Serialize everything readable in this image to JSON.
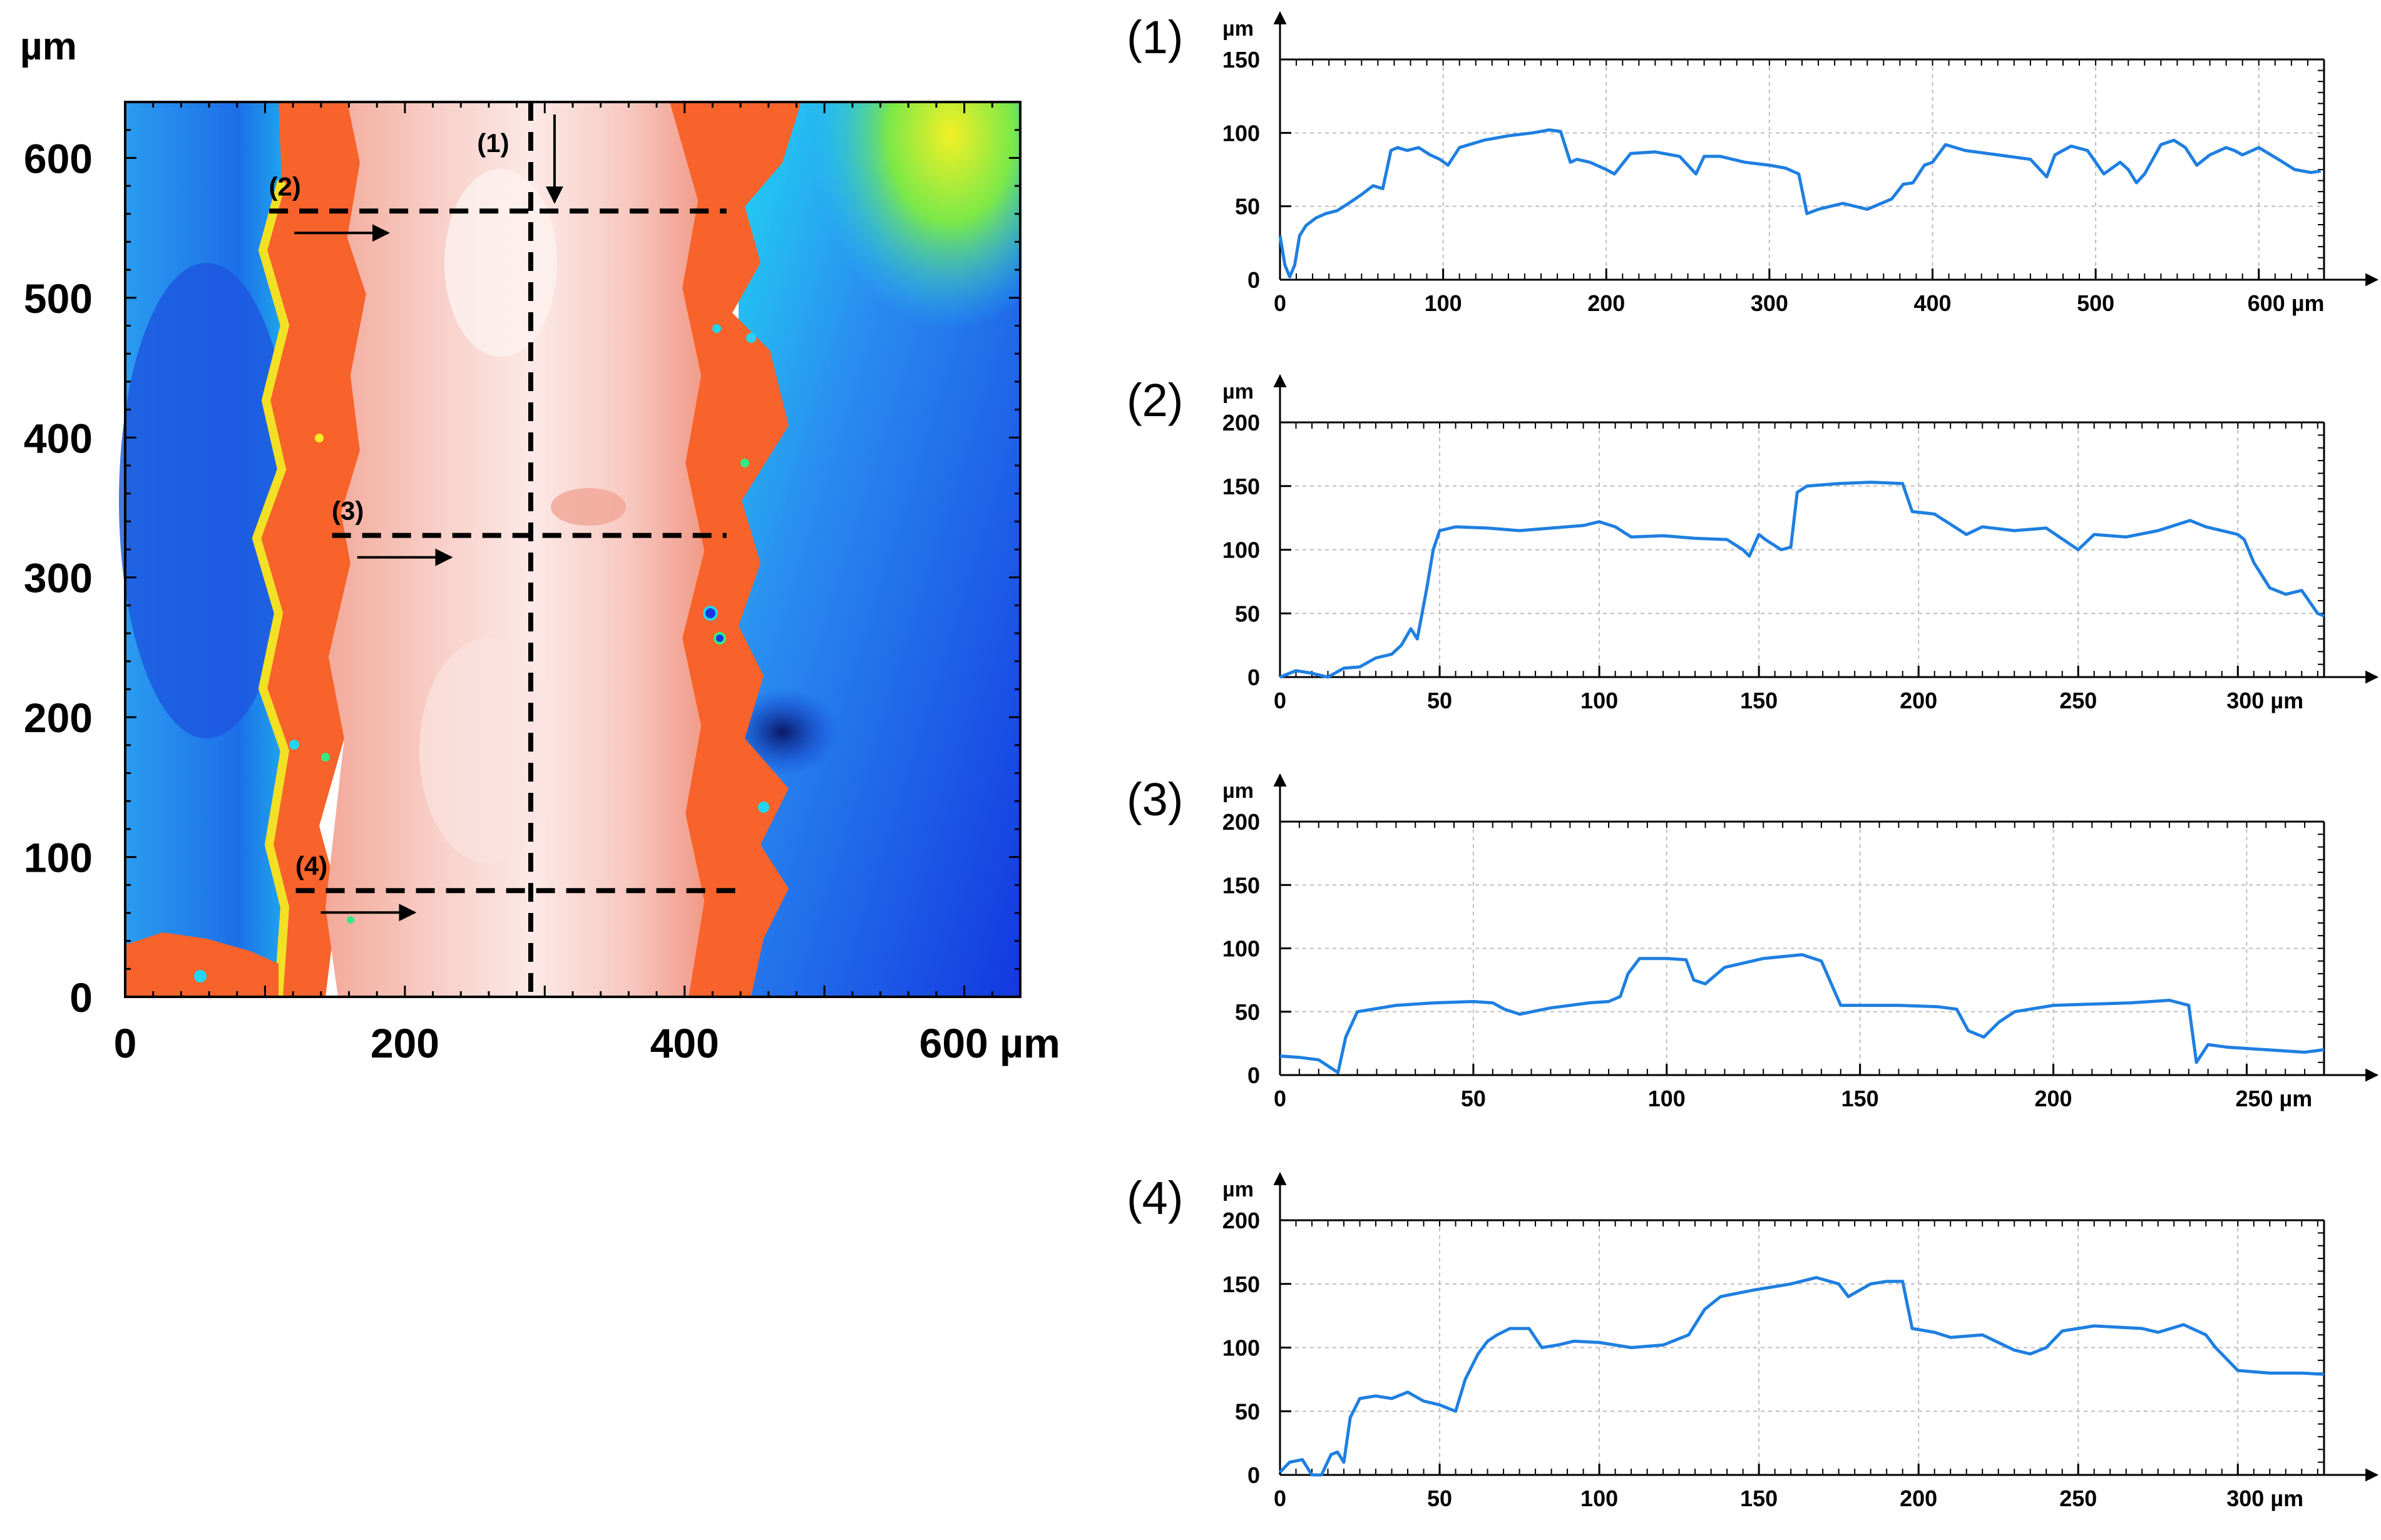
{
  "chart_data": [
    {
      "id": "map",
      "type": "heatmap",
      "title": "",
      "ylabel_unit": "µm",
      "xlabel_unit": "µm",
      "x_ticks": [
        "0",
        "200",
        "400",
        "600 µm"
      ],
      "x_tick_values": [
        0,
        200,
        400,
        600
      ],
      "y_ticks": [
        "0",
        "100",
        "200",
        "300",
        "400",
        "500",
        "600"
      ],
      "y_tick_values": [
        0,
        100,
        200,
        300,
        400,
        500,
        600
      ],
      "xlim": [
        0,
        640
      ],
      "ylim": [
        0,
        640
      ],
      "colorscale": [
        "#0a2470",
        "#1338e0",
        "#2a8cf0",
        "#21d6f2",
        "#34e886",
        "#b0ef2a",
        "#f2f025",
        "#fb6a2b",
        "#f6b7ae",
        "#fbe8e5"
      ],
      "profile_lines": [
        {
          "label": "(1)",
          "orientation": "vertical",
          "x": 290,
          "y_from": 640,
          "y_to": 0,
          "arrow": "down"
        },
        {
          "label": "(2)",
          "orientation": "horizontal",
          "y": 562,
          "x_from": 103,
          "x_to": 430,
          "arrow": "right"
        },
        {
          "label": "(3)",
          "orientation": "horizontal",
          "y": 330,
          "x_from": 148,
          "x_to": 430,
          "arrow": "right"
        },
        {
          "label": "(4)",
          "orientation": "horizontal",
          "y": 76,
          "x_from": 122,
          "x_to": 440,
          "arrow": "right"
        }
      ]
    },
    {
      "id": "profile-1",
      "type": "line",
      "label": "(1)",
      "ylabel": "µm",
      "xlim": [
        0,
        640
      ],
      "ylim": [
        0,
        150
      ],
      "x_tick_values": [
        0,
        100,
        200,
        300,
        400,
        500,
        600
      ],
      "x_tick_labels": [
        "0",
        "100",
        "200",
        "300",
        "400",
        "500",
        "600 µm"
      ],
      "y_tick_values": [
        0,
        50,
        100,
        150
      ],
      "y_tick_labels": [
        "0",
        "50",
        "100",
        "150"
      ],
      "color": "#1e7fe0",
      "x": [
        0,
        3,
        6,
        9,
        12,
        16,
        22,
        28,
        35,
        42,
        50,
        57,
        63,
        68,
        72,
        78,
        85,
        92,
        98,
        103,
        110,
        125,
        140,
        155,
        165,
        172,
        178,
        182,
        190,
        200,
        205,
        215,
        230,
        245,
        255,
        260,
        270,
        285,
        300,
        310,
        318,
        323,
        330,
        345,
        360,
        375,
        382,
        388,
        395,
        400,
        408,
        420,
        440,
        460,
        470,
        475,
        485,
        495,
        505,
        515,
        520,
        525,
        530,
        540,
        548,
        555,
        562,
        570,
        580,
        585,
        590,
        600,
        612,
        622,
        632,
        638
      ],
      "y": [
        30,
        10,
        2,
        10,
        30,
        37,
        42,
        45,
        47,
        52,
        58,
        64,
        62,
        88,
        90,
        88,
        90,
        85,
        82,
        78,
        90,
        95,
        98,
        100,
        102,
        101,
        80,
        82,
        80,
        75,
        72,
        86,
        87,
        84,
        72,
        84,
        84,
        80,
        78,
        76,
        72,
        45,
        48,
        52,
        48,
        55,
        65,
        66,
        78,
        80,
        92,
        88,
        85,
        82,
        70,
        85,
        91,
        88,
        72,
        80,
        75,
        66,
        72,
        92,
        95,
        90,
        78,
        85,
        90,
        88,
        85,
        90,
        82,
        75,
        73,
        74
      ]
    },
    {
      "id": "profile-2",
      "type": "line",
      "label": "(2)",
      "ylabel": "µm",
      "xlim": [
        0,
        327
      ],
      "ylim": [
        0,
        200
      ],
      "x_tick_values": [
        0,
        50,
        100,
        150,
        200,
        250,
        300
      ],
      "x_tick_labels": [
        "0",
        "50",
        "100",
        "150",
        "200",
        "250",
        "300 µm"
      ],
      "y_tick_values": [
        0,
        50,
        100,
        150,
        200
      ],
      "y_tick_labels": [
        "0",
        "50",
        "100",
        "150",
        "200"
      ],
      "color": "#1e7fe0",
      "x": [
        0,
        5,
        10,
        15,
        20,
        25,
        30,
        35,
        38,
        41,
        43,
        46,
        48,
        50,
        55,
        65,
        75,
        85,
        95,
        100,
        105,
        110,
        120,
        130,
        140,
        145,
        147,
        150,
        152,
        157,
        160,
        162,
        165,
        175,
        185,
        195,
        198,
        205,
        210,
        215,
        220,
        230,
        240,
        250,
        255,
        265,
        275,
        285,
        290,
        300,
        302,
        305,
        310,
        315,
        320,
        325,
        327
      ],
      "y": [
        0,
        5,
        3,
        0,
        7,
        8,
        15,
        18,
        25,
        38,
        30,
        70,
        100,
        115,
        118,
        117,
        115,
        117,
        119,
        122,
        118,
        110,
        111,
        109,
        108,
        100,
        95,
        112,
        108,
        100,
        102,
        145,
        150,
        152,
        153,
        152,
        130,
        128,
        120,
        112,
        118,
        115,
        117,
        100,
        112,
        110,
        115,
        123,
        118,
        112,
        108,
        90,
        70,
        65,
        68,
        50,
        48
      ]
    },
    {
      "id": "profile-3",
      "type": "line",
      "label": "(3)",
      "ylabel": "µm",
      "xlim": [
        0,
        270
      ],
      "ylim": [
        0,
        200
      ],
      "x_tick_values": [
        0,
        50,
        100,
        150,
        200,
        250
      ],
      "x_tick_labels": [
        "0",
        "50",
        "100",
        "150",
        "200",
        "250 µm"
      ],
      "y_tick_values": [
        0,
        50,
        100,
        150,
        200
      ],
      "y_tick_labels": [
        "0",
        "50",
        "100",
        "150",
        "200"
      ],
      "color": "#1e7fe0",
      "x": [
        0,
        5,
        10,
        15,
        17,
        20,
        30,
        40,
        50,
        55,
        58,
        62,
        70,
        80,
        85,
        88,
        90,
        93,
        100,
        105,
        107,
        110,
        115,
        125,
        135,
        140,
        145,
        150,
        160,
        170,
        175,
        178,
        182,
        186,
        190,
        200,
        210,
        220,
        230,
        235,
        237,
        240,
        245,
        255,
        265,
        270
      ],
      "y": [
        15,
        14,
        12,
        2,
        30,
        50,
        55,
        57,
        58,
        57,
        52,
        48,
        53,
        57,
        58,
        62,
        80,
        92,
        92,
        91,
        75,
        72,
        85,
        92,
        95,
        90,
        55,
        55,
        55,
        54,
        52,
        35,
        30,
        42,
        50,
        55,
        56,
        57,
        59,
        55,
        10,
        24,
        22,
        20,
        18,
        20
      ]
    },
    {
      "id": "profile-4",
      "type": "line",
      "label": "(4)",
      "ylabel": "µm",
      "xlim": [
        0,
        327
      ],
      "ylim": [
        0,
        200
      ],
      "x_tick_values": [
        0,
        50,
        100,
        150,
        200,
        250,
        300
      ],
      "x_tick_labels": [
        "0",
        "50",
        "100",
        "150",
        "200",
        "250",
        "300 µm"
      ],
      "y_tick_values": [
        0,
        50,
        100,
        150,
        200
      ],
      "y_tick_labels": [
        "0",
        "50",
        "100",
        "150",
        "200"
      ],
      "color": "#1e7fe0",
      "x": [
        0,
        3,
        7,
        10,
        13,
        16,
        18,
        20,
        22,
        25,
        30,
        35,
        40,
        45,
        50,
        55,
        58,
        62,
        65,
        68,
        72,
        78,
        82,
        87,
        92,
        100,
        110,
        120,
        128,
        133,
        138,
        148,
        160,
        168,
        175,
        178,
        185,
        190,
        195,
        198,
        205,
        210,
        220,
        230,
        235,
        240,
        245,
        255,
        270,
        275,
        283,
        290,
        293,
        300,
        310,
        320,
        327
      ],
      "y": [
        2,
        10,
        12,
        0,
        0,
        16,
        18,
        10,
        45,
        60,
        62,
        60,
        65,
        58,
        55,
        50,
        75,
        95,
        105,
        110,
        115,
        115,
        100,
        102,
        105,
        104,
        100,
        102,
        110,
        130,
        140,
        145,
        150,
        155,
        150,
        140,
        150,
        152,
        152,
        115,
        112,
        108,
        110,
        98,
        95,
        100,
        113,
        117,
        115,
        112,
        118,
        110,
        100,
        82,
        80,
        80,
        79
      ]
    }
  ]
}
